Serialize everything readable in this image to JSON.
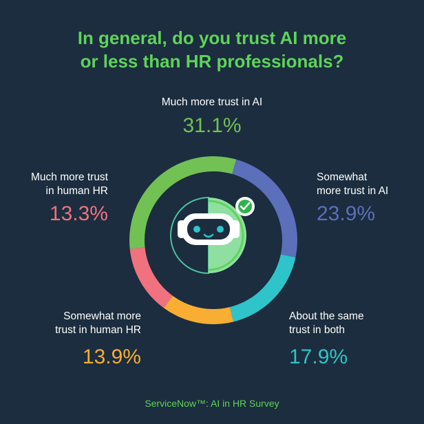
{
  "title": {
    "line1": "In general, do you trust AI more",
    "line2": "or less than HR professionals?"
  },
  "footer": "ServiceNow™: AI in HR Survey",
  "colors": {
    "background": "#1b2d3e",
    "title": "#5fd35a",
    "much_more_ai": "#72c154",
    "somewhat_more_ai": "#5b6fbb",
    "same": "#2ec4c9",
    "somewhat_more_human": "#f8ae32",
    "much_more_human": "#f0727f"
  },
  "icons": {
    "center": "robot-face-icon",
    "badge": "check-icon"
  },
  "chart_data": {
    "type": "pie",
    "donut": true,
    "title": "In general, do you trust AI more or less than HR professionals?",
    "unit": "%",
    "categories": [
      "Much more trust in AI",
      "Somewhat more trust in AI",
      "About the same trust in both",
      "Somewhat more trust in human HR",
      "Much more trust in human HR"
    ],
    "values": [
      31.1,
      23.9,
      17.9,
      13.9,
      13.3
    ],
    "value_labels": [
      "31.1%",
      "23.9%",
      "17.9%",
      "13.9%",
      "13.3%"
    ],
    "label_lines": [
      [
        "Much more trust in AI"
      ],
      [
        "Somewhat",
        "more trust in AI"
      ],
      [
        "About the same",
        "trust in both"
      ],
      [
        "Somewhat more",
        "trust in human HR"
      ],
      [
        "Much more trust",
        "in human HR"
      ]
    ],
    "colors": [
      "#72c154",
      "#5b6fbb",
      "#2ec4c9",
      "#f8ae32",
      "#f0727f"
    ]
  }
}
